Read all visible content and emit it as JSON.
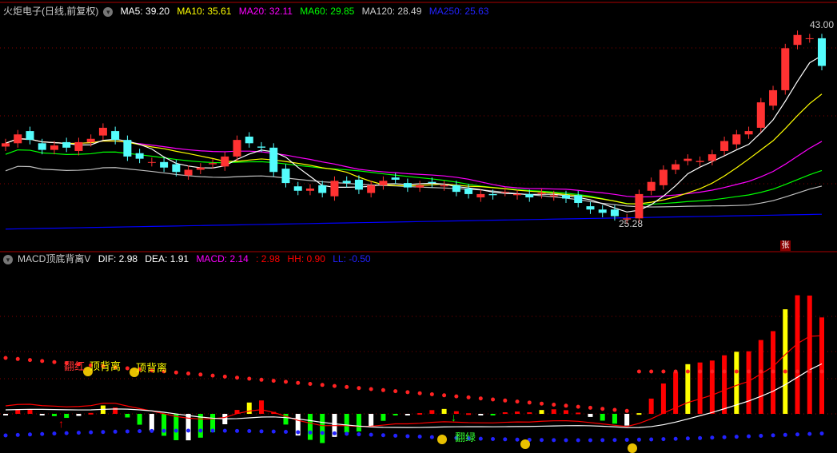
{
  "main_header": {
    "title": "火炬电子(日线,前复权)",
    "ma5": "MA5: 39.20",
    "ma10": "MA10: 35.61",
    "ma20": "MA20: 32.11",
    "ma60": "MA60: 29.85",
    "ma120": "MA120: 28.49",
    "ma250": "MA250: 25.63"
  },
  "price_labels": {
    "high": "43.00",
    "low": "25.28"
  },
  "zhang_badge": "张",
  "sub_header": {
    "title": "MACD顶底背离V",
    "dif": "DIF: 2.98",
    "dea": "DEA: 1.91",
    "macd": "MACD: 2.14",
    "val": ": 2.98",
    "hh": "HH: 0.90",
    "ll": "LL: -0.50"
  },
  "annotations": {
    "fanhong": "翻红",
    "top_div1": "顶背离",
    "top_div2": "顶背离",
    "fanlv": "翻绿"
  },
  "colors": {
    "up": "#ff3232",
    "down": "#54fcfc",
    "ma5": "#ffffff",
    "ma10": "#ffff00",
    "ma20": "#ff00ff",
    "ma60": "#00ff00",
    "ma120": "#c0c0c0",
    "ma250": "#0000ff"
  },
  "chart_data": {
    "type": "candlestick",
    "closes": [
      32.2,
      33.0,
      32.5,
      31.6,
      32.0,
      31.8,
      32.3,
      32.6,
      33.6,
      32.5,
      31.0,
      30.8,
      30.5,
      30.0,
      29.6,
      29.8,
      30.0,
      30.4,
      31.0,
      32.5,
      32.2,
      31.8,
      29.6,
      28.6,
      27.9,
      28.1,
      27.7,
      28.8,
      28.6,
      28.0,
      28.4,
      28.8,
      28.9,
      28.2,
      28.4,
      28.6,
      28.4,
      27.8,
      27.6,
      27.6,
      27.5,
      27.8,
      27.6,
      27.3,
      27.7,
      27.5,
      27.2,
      26.8,
      26.2,
      25.9,
      25.6,
      25.4,
      27.6,
      28.7,
      29.8,
      30.3,
      30.8,
      30.6,
      31.2,
      32.4,
      33.0,
      33.3,
      35.9,
      37.0,
      40.8,
      42.0,
      41.7,
      39.2
    ],
    "high": 43.0,
    "low": 25.28
  }
}
